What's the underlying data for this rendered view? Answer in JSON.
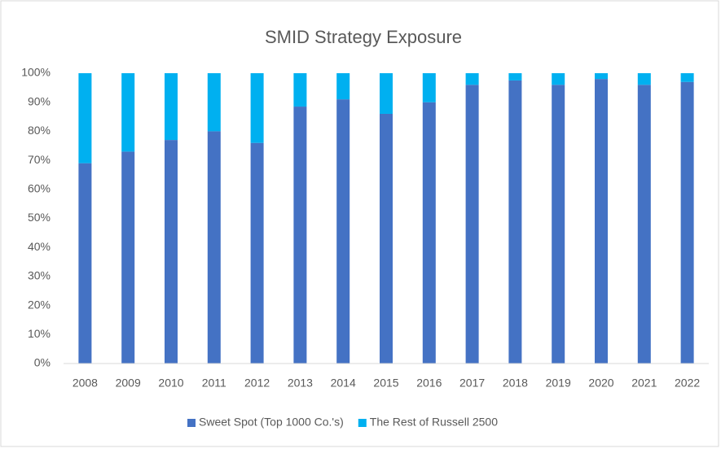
{
  "chart_data": {
    "type": "stacked_bar",
    "title": "SMID Strategy Exposure",
    "categories": [
      "2008",
      "2009",
      "2010",
      "2011",
      "2012",
      "2013",
      "2014",
      "2015",
      "2016",
      "2017",
      "2018",
      "2019",
      "2020",
      "2021",
      "2022"
    ],
    "series": [
      {
        "name": "Sweet Spot (Top 1000 Co.'s)",
        "color": "#4472c4",
        "values": [
          69,
          73,
          77,
          80,
          76,
          88.5,
          91,
          86,
          90,
          96,
          97.5,
          96,
          98,
          96,
          97
        ]
      },
      {
        "name": "The Rest of Russell 2500",
        "color": "#00b0f0",
        "values": [
          31,
          27,
          23,
          20,
          24,
          11.5,
          9,
          14,
          10,
          4,
          2.5,
          4,
          2,
          4,
          3
        ]
      }
    ],
    "ylim": [
      0,
      100
    ],
    "yticks": [
      {
        "value": 0,
        "label": "0%"
      },
      {
        "value": 10,
        "label": "10%"
      },
      {
        "value": 20,
        "label": "20%"
      },
      {
        "value": 30,
        "label": "30%"
      },
      {
        "value": 40,
        "label": "40%"
      },
      {
        "value": 50,
        "label": "50%"
      },
      {
        "value": 60,
        "label": "60%"
      },
      {
        "value": 70,
        "label": "70%"
      },
      {
        "value": 80,
        "label": "80%"
      },
      {
        "value": 90,
        "label": "90%"
      },
      {
        "value": 100,
        "label": "100%"
      }
    ],
    "grid": false,
    "legend": "bottom"
  }
}
